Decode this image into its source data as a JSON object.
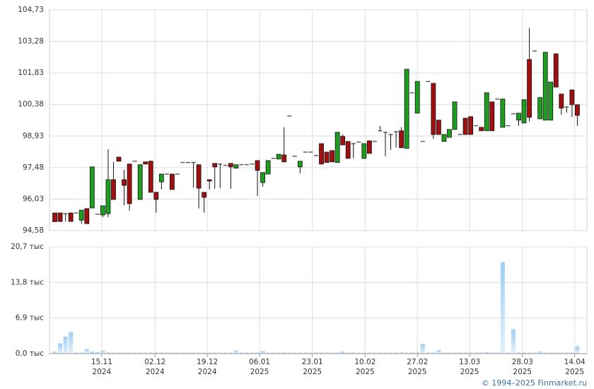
{
  "chart_data": [
    {
      "type": "candlestick",
      "ylim": [
        94.58,
        104.73
      ],
      "yticks": [
        {
          "value": 94.58,
          "label": "94,58"
        },
        {
          "value": 96.03,
          "label": "96,03"
        },
        {
          "value": 97.48,
          "label": "97,48"
        },
        {
          "value": 98.93,
          "label": "98,93"
        },
        {
          "value": 100.38,
          "label": "100,38"
        },
        {
          "value": 101.83,
          "label": "101,83"
        },
        {
          "value": 103.28,
          "label": "103,28"
        },
        {
          "value": 104.73,
          "label": "104,73"
        }
      ],
      "grid": true,
      "up_color": "#1e9e1e",
      "down_color": "#a01010",
      "ohlc": [
        [
          95.39,
          95.39,
          94.99,
          94.99
        ],
        [
          95.39,
          95.39,
          95.0,
          95.0
        ],
        [
          95.36,
          95.36,
          95.0,
          95.36
        ],
        [
          95.39,
          95.39,
          95.0,
          95.0
        ],
        [
          95.39,
          95.39,
          95.39,
          95.39
        ],
        [
          95.06,
          95.52,
          94.9,
          95.52
        ],
        [
          95.59,
          95.59,
          94.9,
          94.9
        ],
        [
          95.62,
          97.51,
          95.62,
          97.51
        ],
        [
          95.33,
          95.33,
          95.33,
          95.33
        ],
        [
          95.3,
          95.72,
          95.2,
          95.72
        ],
        [
          95.36,
          98.32,
          95.2,
          96.92
        ],
        [
          96.92,
          97.74,
          96.01,
          96.01
        ],
        [
          97.96,
          97.96,
          97.77,
          97.77
        ],
        [
          96.92,
          97.38,
          95.75,
          96.66
        ],
        [
          97.64,
          97.64,
          95.5,
          95.82
        ],
        [
          97.77,
          97.77,
          97.77,
          97.77
        ],
        [
          96.01,
          97.61,
          96.01,
          97.61
        ],
        [
          97.74,
          97.74,
          97.64,
          97.64
        ],
        [
          97.77,
          97.8,
          96.34,
          96.34
        ],
        [
          96.34,
          96.34,
          95.4,
          96.01
        ],
        [
          96.82,
          97.18,
          96.47,
          97.18
        ],
        [
          97.18,
          97.18,
          97.18,
          97.18
        ],
        [
          97.18,
          97.18,
          96.47,
          96.47
        ],
        [
          97.18,
          97.18,
          97.18,
          97.18
        ],
        [
          97.71,
          97.71,
          97.71,
          97.71
        ],
        [
          97.71,
          97.71,
          97.71,
          97.71
        ],
        [
          97.71,
          97.71,
          96.56,
          97.71
        ],
        [
          97.61,
          97.61,
          95.6,
          96.53
        ],
        [
          96.34,
          96.34,
          95.4,
          96.11
        ],
        [
          96.92,
          96.92,
          96.47,
          96.86
        ],
        [
          97.67,
          97.67,
          96.5,
          97.51
        ],
        [
          97.64,
          97.64,
          96.53,
          97.64
        ],
        [
          97.58,
          97.58,
          97.58,
          97.58
        ],
        [
          97.67,
          97.67,
          96.5,
          97.51
        ],
        [
          97.45,
          97.61,
          97.45,
          97.61
        ],
        [
          97.61,
          97.61,
          97.61,
          97.61
        ],
        [
          97.61,
          97.61,
          97.61,
          97.61
        ],
        [
          97.64,
          97.64,
          97.64,
          97.64
        ],
        [
          97.8,
          97.8,
          96.17,
          97.35
        ],
        [
          96.79,
          97.25,
          96.6,
          97.25
        ],
        [
          97.18,
          97.8,
          97.18,
          97.8
        ],
        [
          97.9,
          97.9,
          97.9,
          97.9
        ],
        [
          97.87,
          98.09,
          97.87,
          98.09
        ],
        [
          98.06,
          99.33,
          97.74,
          97.74
        ],
        [
          99.85,
          99.85,
          99.85,
          99.85
        ],
        [
          98.0,
          98.0,
          98.0,
          98.0
        ],
        [
          97.51,
          97.77,
          97.22,
          97.77
        ],
        [
          98.19,
          98.19,
          98.19,
          98.19
        ],
        [
          98.19,
          98.19,
          98.19,
          98.19
        ],
        [
          98.03,
          98.03,
          98.03,
          98.03
        ],
        [
          98.58,
          98.58,
          97.64,
          97.64
        ],
        [
          98.19,
          98.19,
          97.71,
          97.71
        ],
        [
          98.26,
          98.26,
          97.74,
          97.74
        ],
        [
          97.71,
          99.1,
          97.71,
          99.1
        ],
        [
          98.91,
          99.0,
          98.52,
          98.52
        ],
        [
          98.68,
          98.68,
          97.9,
          97.9
        ],
        [
          98.58,
          98.58,
          97.9,
          98.58
        ],
        [
          98.65,
          98.65,
          98.65,
          98.65
        ],
        [
          97.9,
          98.58,
          97.9,
          98.58
        ],
        [
          98.71,
          98.71,
          98.13,
          98.13
        ],
        [
          98.68,
          98.68,
          98.68,
          98.68
        ],
        [
          99.17,
          99.4,
          99.17,
          99.17
        ],
        [
          99.1,
          99.1,
          98.0,
          99.1
        ],
        [
          99.0,
          99.0,
          98.3,
          99.0
        ],
        [
          99.13,
          99.13,
          98.4,
          99.13
        ],
        [
          99.17,
          99.33,
          98.39,
          98.39
        ],
        [
          98.36,
          102.0,
          98.36,
          102.0
        ],
        [
          100.92,
          100.92,
          100.92,
          100.92
        ],
        [
          99.98,
          101.44,
          99.98,
          101.44
        ],
        [
          98.68,
          98.68,
          98.68,
          98.68
        ],
        [
          101.44,
          101.44,
          101.44,
          101.44
        ],
        [
          101.35,
          101.35,
          98.8,
          99.0
        ],
        [
          99.66,
          99.66,
          99.0,
          99.0
        ],
        [
          98.68,
          99.0,
          98.68,
          99.0
        ],
        [
          98.87,
          99.23,
          98.87,
          99.23
        ],
        [
          99.23,
          100.5,
          99.23,
          100.5
        ],
        [
          99.0,
          99.0,
          99.0,
          99.0
        ],
        [
          99.75,
          99.75,
          99.0,
          99.0
        ],
        [
          99.82,
          99.82,
          99.0,
          99.0
        ],
        [
          99.4,
          99.4,
          99.4,
          99.4
        ],
        [
          99.33,
          99.33,
          99.17,
          99.17
        ],
        [
          99.17,
          100.92,
          99.17,
          100.92
        ],
        [
          100.5,
          100.5,
          99.17,
          99.17
        ],
        [
          100.63,
          100.63,
          100.63,
          100.63
        ],
        [
          99.33,
          100.63,
          99.33,
          100.63
        ],
        [
          99.4,
          99.4,
          99.4,
          99.4
        ],
        [
          99.95,
          99.95,
          99.95,
          99.95
        ],
        [
          99.66,
          99.98,
          99.4,
          99.98
        ],
        [
          99.53,
          100.6,
          99.53,
          100.6
        ],
        [
          102.45,
          103.9,
          99.6,
          99.79
        ],
        [
          102.84,
          102.84,
          102.84,
          102.84
        ],
        [
          99.72,
          100.7,
          99.72,
          100.7
        ],
        [
          99.66,
          102.78,
          99.66,
          102.78
        ],
        [
          99.66,
          101.41,
          99.66,
          101.41
        ],
        [
          102.71,
          102.71,
          101.18,
          101.18
        ],
        [
          100.86,
          100.86,
          99.9,
          100.21
        ],
        [
          100.27,
          100.27,
          100.0,
          100.27
        ],
        [
          101.05,
          101.05,
          99.8,
          100.37
        ],
        [
          100.37,
          100.37,
          99.4,
          99.88
        ]
      ]
    },
    {
      "type": "bar",
      "ylim": [
        0,
        20.7
      ],
      "yticks": [
        {
          "value": 0,
          "label": "0,0 тыс"
        },
        {
          "value": 6.9,
          "label": "6,9 тыс"
        },
        {
          "value": 13.8,
          "label": "13,8 тыс"
        },
        {
          "value": 20.7,
          "label": "20,7 тыс"
        }
      ],
      "xlim": [
        -1,
        99.8
      ],
      "xticks": [
        {
          "value": 8.8,
          "label": "15.11",
          "sublabel": "2024"
        },
        {
          "value": 18.8,
          "label": "02.12",
          "sublabel": "2024"
        },
        {
          "value": 28.6,
          "label": "19.12",
          "sublabel": "2024"
        },
        {
          "value": 38.4,
          "label": "06.01",
          "sublabel": "2025"
        },
        {
          "value": 48.3,
          "label": "23.01",
          "sublabel": "2025"
        },
        {
          "value": 58.2,
          "label": "10.02",
          "sublabel": "2025"
        },
        {
          "value": 68.0,
          "label": "27.02",
          "sublabel": "2025"
        },
        {
          "value": 77.8,
          "label": "13.03",
          "sublabel": "2025"
        },
        {
          "value": 87.7,
          "label": "28.03",
          "sublabel": "2025"
        },
        {
          "value": 97.5,
          "label": "14.04",
          "sublabel": "2025"
        }
      ],
      "grid": true,
      "color": "#9fcdf2",
      "values": [
        0.4,
        2.0,
        3.3,
        4.2,
        0.2,
        0.2,
        0.9,
        0.4,
        0.3,
        0.6,
        0.2,
        0.2,
        0.2,
        0.2,
        0.2,
        0.2,
        0.2,
        0.2,
        0.2,
        0.2,
        0.2,
        0.2,
        0.2,
        0.2,
        0.2,
        0.2,
        0.2,
        0.2,
        0.2,
        0.2,
        0.2,
        0.2,
        0.2,
        0.2,
        0.6,
        0.2,
        0.2,
        0.2,
        0.2,
        0.5,
        0.2,
        0.2,
        0.2,
        0.2,
        0.2,
        0.2,
        0.2,
        0.2,
        0.2,
        0.2,
        0.2,
        0.2,
        0.2,
        0.2,
        0.4,
        0.2,
        0.2,
        0.2,
        0.2,
        0.2,
        0.2,
        0.2,
        0.2,
        0.2,
        0.2,
        0.2,
        0.2,
        0.2,
        0.2,
        1.9,
        0.2,
        0.2,
        0.7,
        0.2,
        0.2,
        0.2,
        0.2,
        0.2,
        0.2,
        0.2,
        0.2,
        0.3,
        0.2,
        0.2,
        17.7,
        0.2,
        4.7,
        0.2,
        0.2,
        0.2,
        0.2,
        0.4,
        0.2,
        0.2,
        0.2,
        0.2,
        0.2,
        0.2,
        1.4
      ]
    }
  ],
  "footer": "© 1994–2025 Finmarket.ru"
}
